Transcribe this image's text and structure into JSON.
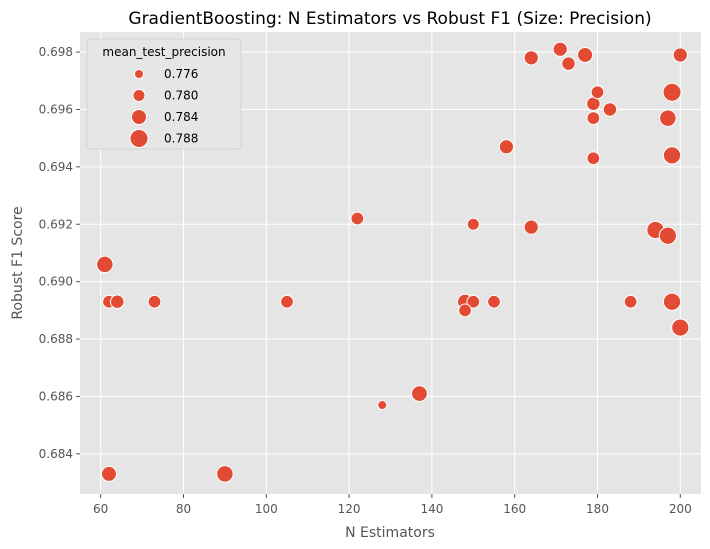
{
  "chart_data": {
    "type": "scatter",
    "title": "GradientBoosting: N Estimators vs Robust F1 (Size: Precision)",
    "xlabel": "N Estimators",
    "ylabel": "Robust F1 Score",
    "xlim": [
      55,
      205
    ],
    "ylim": [
      0.6826,
      0.6987
    ],
    "xticks": [
      60,
      80,
      100,
      120,
      140,
      160,
      180,
      200
    ],
    "yticks": [
      0.684,
      0.686,
      0.688,
      0.69,
      0.692,
      0.694,
      0.696,
      0.698
    ],
    "xtick_labels": [
      "60",
      "80",
      "100",
      "120",
      "140",
      "160",
      "180",
      "200"
    ],
    "ytick_labels": [
      "0.684",
      "0.686",
      "0.688",
      "0.690",
      "0.692",
      "0.694",
      "0.696",
      "0.698"
    ],
    "grid": true,
    "legend_position": "top-left",
    "marker_color": "#E24A33",
    "background_color": "#E5E5E5",
    "legend": {
      "title": "mean_test_precision",
      "entries": [
        {
          "label": "0.776",
          "size": 0.776
        },
        {
          "label": "0.780",
          "size": 0.78
        },
        {
          "label": "0.784",
          "size": 0.784
        },
        {
          "label": "0.788",
          "size": 0.788
        }
      ]
    },
    "points": [
      {
        "x": 61,
        "y": 0.6906,
        "size": 0.786
      },
      {
        "x": 62,
        "y": 0.6893,
        "size": 0.781
      },
      {
        "x": 64,
        "y": 0.6893,
        "size": 0.782
      },
      {
        "x": 62,
        "y": 0.6833,
        "size": 0.784
      },
      {
        "x": 73,
        "y": 0.6893,
        "size": 0.781
      },
      {
        "x": 90,
        "y": 0.6833,
        "size": 0.786
      },
      {
        "x": 105,
        "y": 0.6893,
        "size": 0.781
      },
      {
        "x": 122,
        "y": 0.6922,
        "size": 0.781
      },
      {
        "x": 128,
        "y": 0.6857,
        "size": 0.776
      },
      {
        "x": 137,
        "y": 0.6861,
        "size": 0.785
      },
      {
        "x": 148,
        "y": 0.6893,
        "size": 0.784
      },
      {
        "x": 150,
        "y": 0.6893,
        "size": 0.781
      },
      {
        "x": 148,
        "y": 0.689,
        "size": 0.781
      },
      {
        "x": 150,
        "y": 0.692,
        "size": 0.78
      },
      {
        "x": 155,
        "y": 0.6893,
        "size": 0.781
      },
      {
        "x": 158,
        "y": 0.6947,
        "size": 0.783
      },
      {
        "x": 164,
        "y": 0.6978,
        "size": 0.783
      },
      {
        "x": 164,
        "y": 0.6919,
        "size": 0.783
      },
      {
        "x": 171,
        "y": 0.6981,
        "size": 0.783
      },
      {
        "x": 173,
        "y": 0.6976,
        "size": 0.782
      },
      {
        "x": 177,
        "y": 0.6979,
        "size": 0.784
      },
      {
        "x": 179,
        "y": 0.6962,
        "size": 0.782
      },
      {
        "x": 180,
        "y": 0.6966,
        "size": 0.781
      },
      {
        "x": 179,
        "y": 0.6957,
        "size": 0.781
      },
      {
        "x": 183,
        "y": 0.696,
        "size": 0.782
      },
      {
        "x": 179,
        "y": 0.6943,
        "size": 0.781
      },
      {
        "x": 188,
        "y": 0.6893,
        "size": 0.781
      },
      {
        "x": 194,
        "y": 0.6918,
        "size": 0.787
      },
      {
        "x": 197,
        "y": 0.6916,
        "size": 0.787
      },
      {
        "x": 197,
        "y": 0.6957,
        "size": 0.786
      },
      {
        "x": 198,
        "y": 0.6966,
        "size": 0.788
      },
      {
        "x": 198,
        "y": 0.6944,
        "size": 0.787
      },
      {
        "x": 198,
        "y": 0.6893,
        "size": 0.787
      },
      {
        "x": 200,
        "y": 0.6979,
        "size": 0.783
      },
      {
        "x": 200,
        "y": 0.6884,
        "size": 0.787
      }
    ]
  }
}
